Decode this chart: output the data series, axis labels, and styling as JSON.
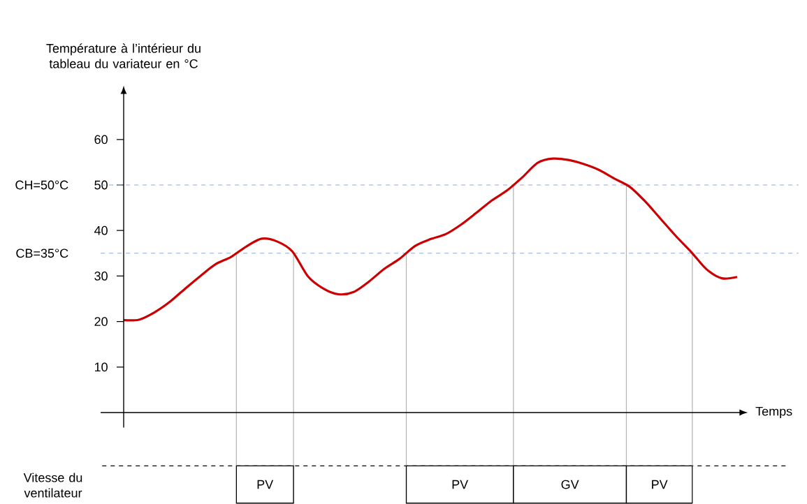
{
  "chart_data": {
    "type": "line",
    "ylabel": "Température à l’intérieur du tableau du variateur en °C",
    "xlabel": "Temps",
    "categories": [
      null,
      null,
      null,
      null,
      null,
      null,
      null,
      null,
      null,
      null,
      null,
      null,
      null,
      null,
      null,
      null,
      null,
      null,
      null,
      null,
      null,
      null,
      null,
      null,
      null,
      null,
      null,
      null,
      null,
      null,
      null,
      null,
      null,
      null,
      null,
      null,
      null,
      null,
      null,
      null,
      null
    ],
    "series": [
      {
        "color": "#cc0000",
        "values": [
          20.3,
          20.4,
          22.0,
          24.3,
          27.2,
          30.0,
          32.6,
          34.2,
          36.5,
          38.2,
          37.6,
          35.4,
          30.0,
          27.3,
          26.0,
          26.5,
          28.8,
          31.6,
          33.8,
          36.6,
          38.1,
          39.2,
          41.3,
          43.9,
          46.6,
          48.8,
          51.7,
          54.9,
          55.8,
          55.5,
          54.6,
          53.3,
          51.4,
          49.6,
          46.4,
          42.6,
          38.8,
          35.3,
          31.5,
          29.5,
          29.8
        ]
      }
    ],
    "ylim": [
      0,
      70
    ],
    "yticks": [
      10,
      20,
      30,
      40,
      50,
      60
    ],
    "line_style": "solid",
    "ref_lines": [
      {
        "axis": "y",
        "value": 50,
        "label": "CH=50°C",
        "color": "#8faadc",
        "line_style": "dashed"
      },
      {
        "axis": "y",
        "value": 35,
        "label": "CB=35°C",
        "color": "#8faadc",
        "line_style": "dashed"
      }
    ],
    "annotations": [
      "Vitesse du ventilateur",
      "PV",
      "PV",
      "GV",
      "PV"
    ]
  }
}
